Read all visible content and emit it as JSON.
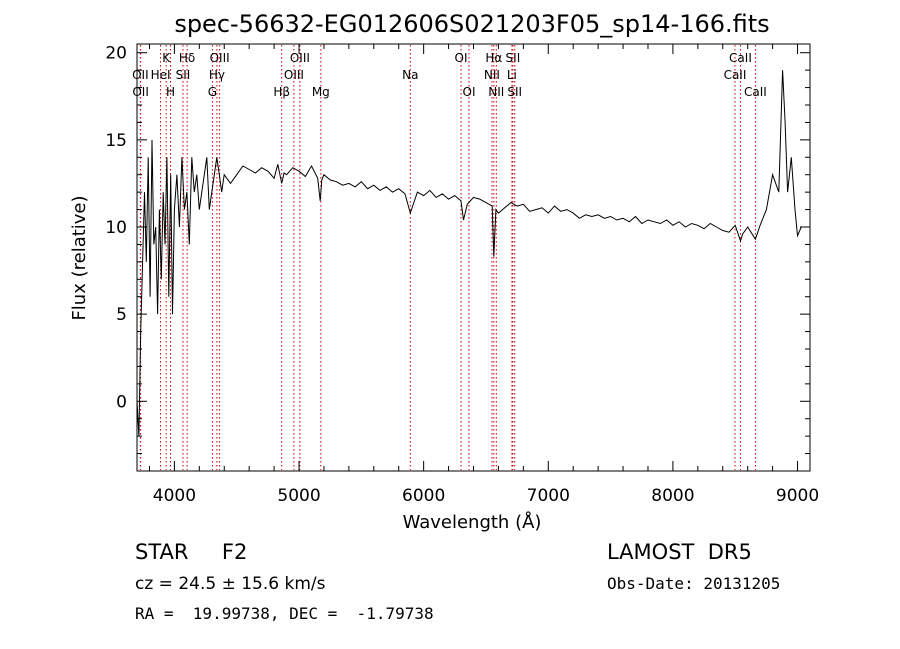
{
  "chart_data": {
    "type": "line",
    "title": "spec-56632-EG012606S021203F05_sp14-166.fits",
    "xlabel": "Wavelength (Å)",
    "ylabel": "Flux (relative)",
    "xlim": [
      3700,
      9100
    ],
    "ylim": [
      -4,
      20.5
    ],
    "x_ticks": [
      4000,
      5000,
      6000,
      7000,
      8000,
      9000
    ],
    "y_ticks": [
      0,
      5,
      10,
      15,
      20
    ],
    "grid": false,
    "line_color": "#000000",
    "marker_color": "#cc0000",
    "series": [
      {
        "x": [
          3700,
          3715,
          3730,
          3745,
          3760,
          3775,
          3790,
          3805,
          3820,
          3835,
          3850,
          3865,
          3880,
          3895,
          3910,
          3925,
          3940,
          3955,
          3970,
          3985,
          4000,
          4020,
          4040,
          4060,
          4080,
          4100,
          4120,
          4140,
          4160,
          4180,
          4200,
          4220,
          4240,
          4260,
          4280,
          4300,
          4320,
          4340,
          4360,
          4380,
          4400,
          4450,
          4500,
          4550,
          4600,
          4650,
          4700,
          4750,
          4800,
          4830,
          4861,
          4880,
          4900,
          4950,
          5000,
          5050,
          5100,
          5150,
          5170,
          5183,
          5200,
          5250,
          5300,
          5350,
          5400,
          5450,
          5500,
          5550,
          5600,
          5650,
          5700,
          5750,
          5800,
          5850,
          5893,
          5950,
          6000,
          6050,
          6100,
          6150,
          6200,
          6250,
          6300,
          6320,
          6350,
          6400,
          6450,
          6500,
          6550,
          6563,
          6580,
          6600,
          6650,
          6700,
          6750,
          6800,
          6850,
          6900,
          6950,
          7000,
          7050,
          7100,
          7150,
          7200,
          7250,
          7300,
          7350,
          7400,
          7450,
          7500,
          7550,
          7600,
          7650,
          7700,
          7750,
          7800,
          7850,
          7900,
          7950,
          8000,
          8050,
          8100,
          8150,
          8200,
          8250,
          8300,
          8350,
          8400,
          8450,
          8500,
          8542,
          8560,
          8600,
          8662,
          8700,
          8750,
          8800,
          8850,
          8880,
          8900,
          8920,
          8950,
          8980,
          9000,
          9030
        ],
        "y": [
          0,
          -2,
          4,
          8,
          12,
          8,
          14,
          6,
          15,
          9,
          10,
          5,
          11,
          7,
          12,
          9,
          14,
          6,
          13,
          5,
          11,
          13,
          10,
          14,
          11,
          12,
          9,
          14,
          12,
          13,
          11,
          12,
          13,
          14,
          11,
          12,
          13,
          14,
          13,
          12,
          13,
          12.5,
          13,
          13.5,
          13.3,
          13.1,
          13.4,
          13.2,
          12.8,
          13.6,
          12.5,
          13.1,
          13,
          13.4,
          13.2,
          12.9,
          13.5,
          12.8,
          11.5,
          12.7,
          13,
          12.7,
          12.6,
          12.4,
          12.5,
          12.3,
          12.6,
          12.2,
          12.4,
          12.1,
          12.3,
          12,
          12.2,
          11.9,
          10.8,
          12,
          11.8,
          12.1,
          11.7,
          11.9,
          11.6,
          11.8,
          11.5,
          10.4,
          11.3,
          11.7,
          11.6,
          11.4,
          11.2,
          8.3,
          11,
          10.8,
          11.1,
          11.4,
          11.2,
          11.3,
          10.9,
          11,
          11.1,
          10.8,
          11.2,
          10.9,
          11,
          10.8,
          10.5,
          10.7,
          10.6,
          10.7,
          10.5,
          10.6,
          10.4,
          10.5,
          10.3,
          10.6,
          10.2,
          10.4,
          10.3,
          10.2,
          10.4,
          10.1,
          10.3,
          10,
          10.2,
          10.1,
          9.9,
          10.2,
          10,
          9.8,
          9.7,
          10.1,
          9.2,
          9.6,
          10,
          9.3,
          10.1,
          11,
          13,
          12,
          19,
          16,
          12,
          14,
          11,
          9.5,
          10
        ]
      }
    ],
    "lines": [
      {
        "name": "Hδ",
        "x": 4102,
        "row": 1
      },
      {
        "name": "K",
        "x": 3934,
        "row": 1
      },
      {
        "name": "H",
        "x": 3969,
        "row": 3
      },
      {
        "name": "HeI",
        "x": 3889,
        "row": 2
      },
      {
        "name": "OII",
        "x": 3727,
        "row": 2
      },
      {
        "name": "OII",
        "x": 3729,
        "row": 3
      },
      {
        "name": "SII",
        "x": 4069,
        "row": 2
      },
      {
        "name": "Hδ",
        "x": 4102,
        "row": 1
      },
      {
        "name": "OIII",
        "x": 4363,
        "row": 1
      },
      {
        "name": "Hγ",
        "x": 4341,
        "row": 2
      },
      {
        "name": "G",
        "x": 4305,
        "row": 3
      },
      {
        "name": "Hβ",
        "x": 4861,
        "row": 3
      },
      {
        "name": "OIII",
        "x": 4959,
        "row": 2
      },
      {
        "name": "OIII",
        "x": 5007,
        "row": 1
      },
      {
        "name": "Mg",
        "x": 5175,
        "row": 3
      },
      {
        "name": "Na",
        "x": 5893,
        "row": 2
      },
      {
        "name": "OI",
        "x": 6300,
        "row": 1
      },
      {
        "name": "OI",
        "x": 6364,
        "row": 3
      },
      {
        "name": "NII",
        "x": 6548,
        "row": 2
      },
      {
        "name": "Hα",
        "x": 6563,
        "row": 1
      },
      {
        "name": "NII",
        "x": 6583,
        "row": 3
      },
      {
        "name": "Li",
        "x": 6708,
        "row": 2
      },
      {
        "name": "SII",
        "x": 6716,
        "row": 1
      },
      {
        "name": "SII",
        "x": 6731,
        "row": 3
      },
      {
        "name": "CaII",
        "x": 8498,
        "row": 2
      },
      {
        "name": "CaII",
        "x": 8542,
        "row": 1
      },
      {
        "name": "CaII",
        "x": 8662,
        "row": 3
      }
    ]
  },
  "info": {
    "object": "STAR     F2",
    "survey": "LAMOST  DR5",
    "cz": "cz = 24.5 ± 15.6 km/s",
    "obs_date": "Obs-Date: 20131205",
    "radec": "RA =  19.99738, DEC =  -1.79738"
  }
}
